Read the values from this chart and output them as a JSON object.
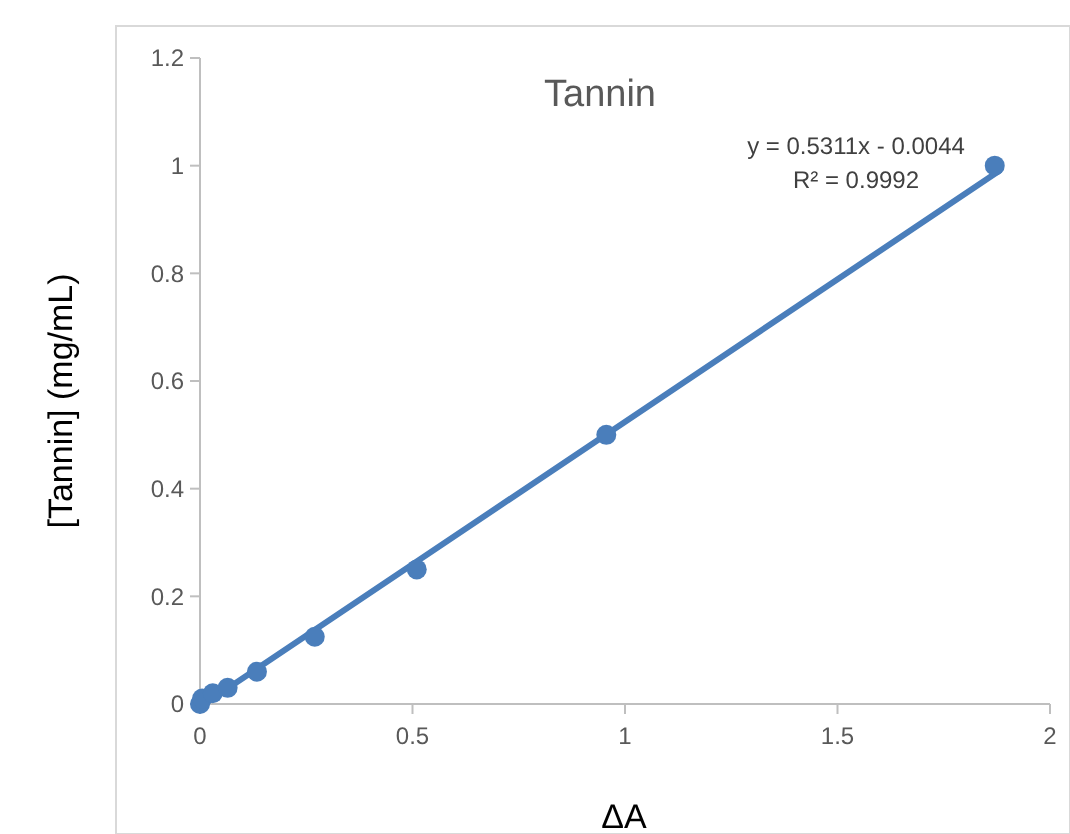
{
  "chart_data": {
    "type": "scatter",
    "title": "Tannin",
    "xlabel": "ΔA",
    "ylabel": "[Tannin] (mg/mL)",
    "xlim": [
      0,
      2
    ],
    "xticks": [
      0,
      0.5,
      1,
      1.5,
      2
    ],
    "ylim": [
      0,
      1.2
    ],
    "yticks": [
      0,
      0.2,
      0.4,
      0.6,
      0.8,
      1,
      1.2
    ],
    "grid": false,
    "marker": "circle",
    "series": [
      {
        "color": "#4a7ebb",
        "x": [
          0,
          0.005,
          0.03,
          0.065,
          0.134,
          0.27,
          0.51,
          0.956,
          1.87
        ],
        "values": [
          0,
          0.01,
          0.02,
          0.03,
          0.06,
          0.125,
          0.25,
          0.5,
          1.0
        ]
      },
      {
        "type": "line",
        "marker": "none",
        "color": "#4a7ebb",
        "x": [
          0.01,
          1.88
        ],
        "values": [
          0,
          0.99
        ]
      }
    ],
    "annotations": [
      "y = 0.5311x - 0.0044",
      "R² = 0.9992"
    ]
  }
}
